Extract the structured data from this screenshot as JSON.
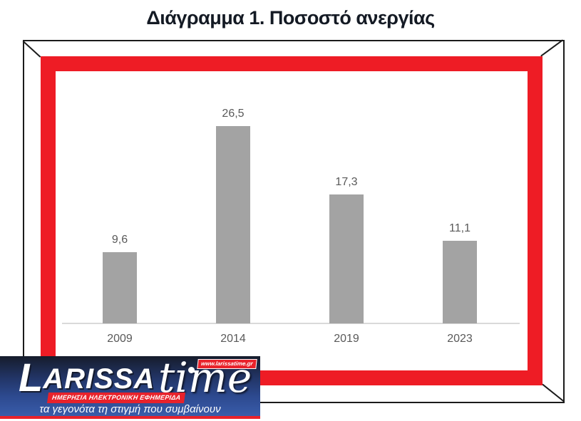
{
  "title": "Διάγραμμα 1. Ποσοστό ανεργίας",
  "chart_data": {
    "type": "bar",
    "title": "Διάγραμμα 1. Ποσοστό ανεργίας",
    "categories": [
      "2009",
      "2014",
      "2019",
      "2023"
    ],
    "values": [
      9.6,
      26.5,
      17.3,
      11.1
    ],
    "value_labels": [
      "9,6",
      "26,5",
      "17,3",
      "11,1"
    ],
    "xlabel": "",
    "ylabel": "",
    "ylim": [
      0,
      28
    ],
    "grid": false,
    "legend": "none",
    "bar_color": "#a3a3a3",
    "data_label_color": "#595959",
    "tick_label_color": "#595959",
    "axis_line_color": "#d9d9d9"
  },
  "frame": {
    "red_color": "#ee1c25",
    "outline_color": "#1b1b1b"
  },
  "logo": {
    "brand_first": "L",
    "brand_rest": "ARISSA",
    "brand_second": "time",
    "website": "www.larissatime.gr",
    "subtitle_banner": "ΗΜΕΡΗΣΙΑ ΗΛΕΚΤΡΟΝΙΚΗ ΕΦΗΜΕΡΙΔΑ",
    "tagline": "τα γεγονότα τη στιγμή που συμβαίνουν",
    "accent_red": "#e8222b"
  }
}
